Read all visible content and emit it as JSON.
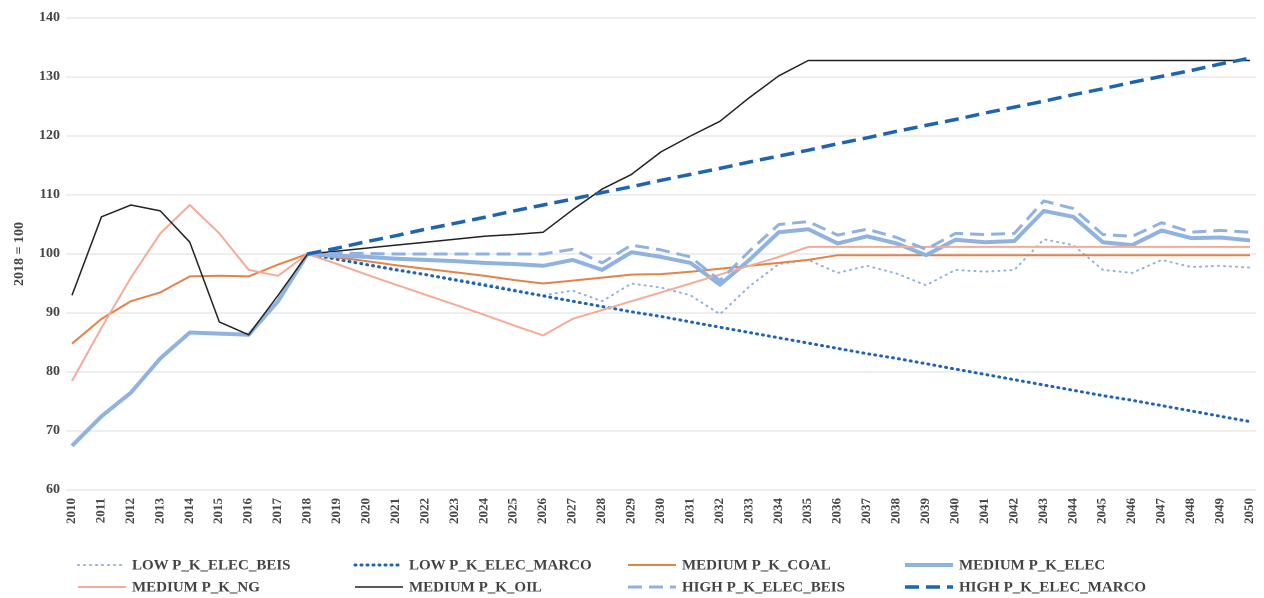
{
  "chart_data": {
    "type": "line",
    "y_label": "2018 = 100",
    "categories": [
      "2010",
      "2011",
      "2012",
      "2013",
      "2014",
      "2015",
      "2016",
      "2017",
      "2018",
      "2019",
      "2020",
      "2021",
      "2022",
      "2023",
      "2024",
      "2025",
      "2026",
      "2027",
      "2028",
      "2029",
      "2030",
      "2031",
      "2032",
      "2033",
      "2034",
      "2035",
      "2036",
      "2037",
      "2038",
      "2039",
      "2040",
      "2041",
      "2042",
      "2043",
      "2044",
      "2045",
      "2046",
      "2047",
      "2048",
      "2049",
      "2050"
    ],
    "ylim": [
      60,
      140
    ],
    "yticks": [
      60,
      70,
      80,
      90,
      100,
      110,
      120,
      130,
      140
    ],
    "grid": true,
    "legend": "bottom",
    "series": [
      {
        "name": "LOW P_K_ELEC_BEIS",
        "color": "#8fb2e0",
        "dash": "dotted",
        "width": 2,
        "values": [
          null,
          null,
          null,
          null,
          null,
          null,
          null,
          null,
          100,
          99.2,
          98.3,
          97.5,
          96.6,
          95.8,
          95,
          94,
          93,
          93.8,
          92,
          95,
          94.3,
          93,
          89.8,
          94.5,
          98.3,
          99,
          96.8,
          98,
          96.7,
          94.7,
          97.3,
          97,
          97.3,
          102.5,
          101.5,
          97.3,
          96.8,
          99,
          97.8,
          98,
          97.7
        ]
      },
      {
        "name": "LOW P_K_ELEC_MARCO",
        "color": "#1f64b0",
        "dash": "dotted",
        "width": 3,
        "values": [
          null,
          null,
          null,
          null,
          null,
          null,
          null,
          null,
          100,
          99.1,
          98.2,
          97.3,
          96.5,
          95.6,
          94.7,
          93.8,
          92.9,
          92.0,
          91.1,
          90.2,
          89.4,
          88.5,
          87.6,
          86.7,
          85.8,
          84.9,
          84.0,
          83.1,
          82.3,
          81.4,
          80.5,
          79.6,
          78.7,
          77.8,
          76.9,
          76.0,
          75.2,
          74.3,
          73.4,
          72.5,
          71.6
        ]
      },
      {
        "name": "MEDIUM P_K_COAL",
        "color": "#e3834a",
        "dash": "solid",
        "width": 2,
        "values": [
          84.8,
          89,
          92,
          93.5,
          96.2,
          96.3,
          96.2,
          98.2,
          100,
          99.4,
          98.8,
          98.1,
          97.5,
          96.9,
          96.3,
          95.6,
          95,
          95.5,
          96,
          96.5,
          96.6,
          97,
          97.5,
          98,
          98.5,
          99,
          99.8,
          99.8,
          99.8,
          99.8,
          99.8,
          99.8,
          99.8,
          99.8,
          99.8,
          99.8,
          99.8,
          99.8,
          99.8,
          99.8,
          99.8
        ]
      },
      {
        "name": "MEDIUM P_K_ELEC",
        "color": "#8fb2e0",
        "dash": "solid",
        "width": 4,
        "values": [
          67.5,
          72.5,
          76.5,
          82.3,
          86.7,
          86.5,
          86.3,
          92,
          100,
          99.7,
          99.5,
          99.2,
          99,
          98.8,
          98.5,
          98.3,
          98,
          99,
          97.3,
          100.3,
          99.5,
          98.5,
          94.8,
          99,
          103.7,
          104.2,
          101.8,
          103,
          101.8,
          99.8,
          102.4,
          102,
          102.2,
          107.3,
          106.3,
          102,
          101.5,
          104,
          102.7,
          102.8,
          102.3
        ]
      },
      {
        "name": "MEDIUM P_K_NG",
        "color": "#f5ab98",
        "dash": "solid",
        "width": 2,
        "values": [
          78.5,
          87.5,
          96,
          103.5,
          108.3,
          103.5,
          97.3,
          96.3,
          100,
          98.3,
          96.5,
          94.8,
          93.1,
          91.4,
          89.7,
          87.9,
          86.2,
          89,
          90.5,
          92,
          93.5,
          95,
          96.5,
          98,
          99.5,
          101.2,
          101.2,
          101.2,
          101.2,
          101.2,
          101.2,
          101.2,
          101.2,
          101.2,
          101.2,
          101.2,
          101.2,
          101.2,
          101.2,
          101.2,
          101.2
        ]
      },
      {
        "name": "MEDIUM P_K_OIL",
        "color": "#222222",
        "dash": "solid",
        "width": 1.5,
        "values": [
          93,
          106.3,
          108.3,
          107.3,
          102,
          88.5,
          86.3,
          93,
          100,
          100.5,
          101,
          101.5,
          102,
          102.5,
          103,
          103.3,
          103.7,
          107.5,
          111,
          113.5,
          117.3,
          120,
          122.5,
          126.5,
          130.2,
          132.8,
          132.8,
          132.8,
          132.8,
          132.8,
          132.8,
          132.8,
          132.8,
          132.8,
          132.8,
          132.8,
          132.8,
          132.8,
          132.8,
          132.8,
          132.8
        ]
      },
      {
        "name": "HIGH P_K_ELEC_BEIS",
        "color": "#8fb2e0",
        "dash": "dashed",
        "width": 3,
        "values": [
          null,
          null,
          null,
          null,
          null,
          null,
          null,
          null,
          100,
          100.1,
          100.1,
          100,
          100,
          100,
          100,
          100,
          100,
          100.8,
          98.5,
          101.5,
          100.7,
          99.5,
          95.5,
          100.5,
          105,
          105.5,
          103.2,
          104.2,
          102.8,
          100.8,
          103.5,
          103.3,
          103.5,
          109,
          107.7,
          103.3,
          103,
          105.3,
          103.7,
          104,
          103.7
        ]
      },
      {
        "name": "HIGH P_K_ELEC_MARCO",
        "color": "#1f64b0",
        "dash": "dashed",
        "width": 3.5,
        "values": [
          null,
          null,
          null,
          null,
          null,
          null,
          null,
          null,
          100,
          101.0,
          102.1,
          103.1,
          104.2,
          105.2,
          106.2,
          107.3,
          108.3,
          109.3,
          110.4,
          111.4,
          112.5,
          113.5,
          114.5,
          115.6,
          116.6,
          117.6,
          118.7,
          119.7,
          120.8,
          121.8,
          122.8,
          123.9,
          124.9,
          125.9,
          127.0,
          128.0,
          129.1,
          130.1,
          131.1,
          132.2,
          133.2
        ]
      }
    ]
  }
}
